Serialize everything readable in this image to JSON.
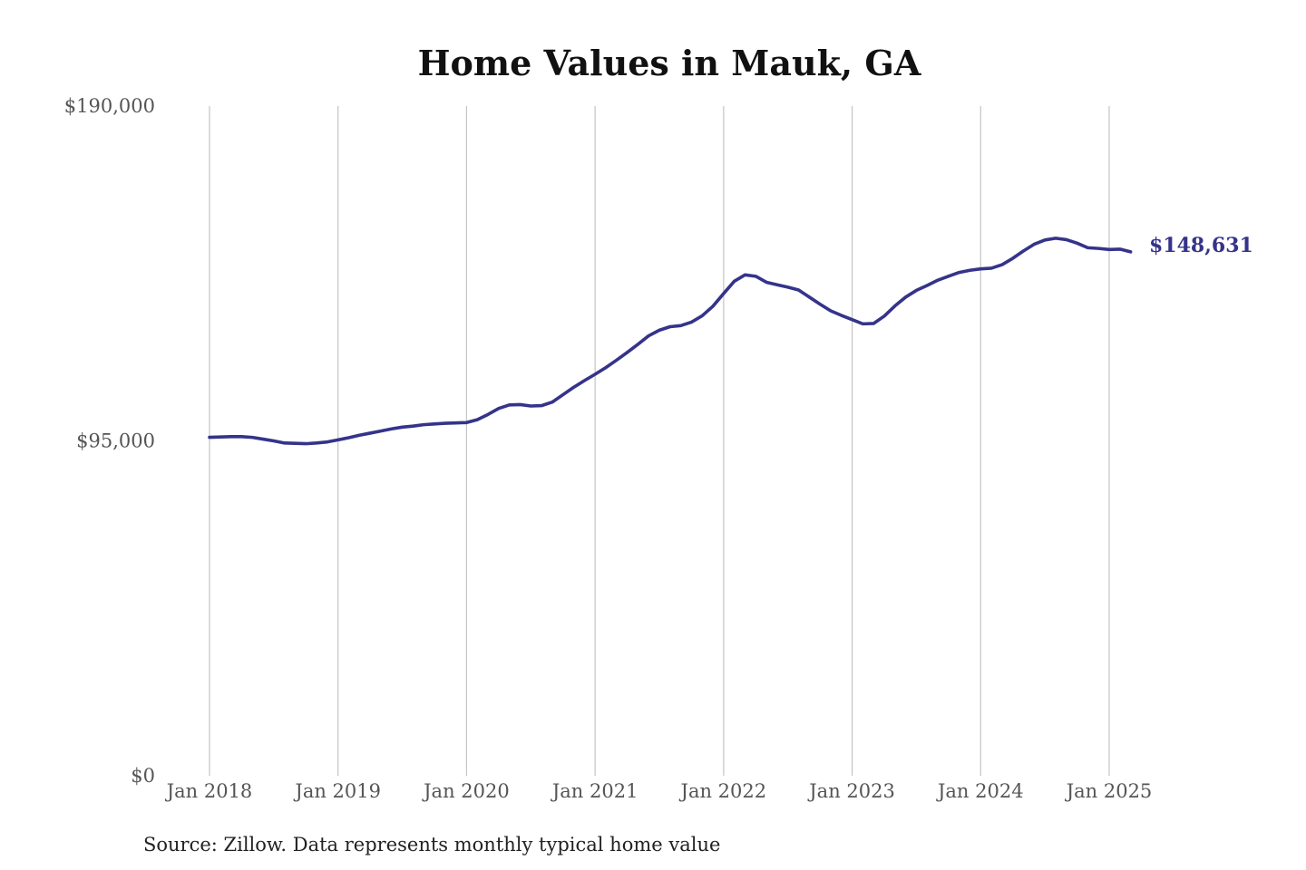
{
  "colors": {
    "series": "#35338a",
    "grid": "#c4c4c4",
    "text": "#111111",
    "tick": "#555555"
  },
  "chart_data": {
    "type": "line",
    "title": "Home Values in Mauk, GA",
    "xlabel": "",
    "ylabel": "",
    "ylim": [
      0,
      190000
    ],
    "xlim": [
      "2018-01",
      "2025-03"
    ],
    "grid": {
      "vertical": true,
      "horizontal": false
    },
    "yticks": [
      {
        "value": 0,
        "label": "$0"
      },
      {
        "value": 95000,
        "label": "$95,000"
      },
      {
        "value": 190000,
        "label": "$190,000"
      }
    ],
    "xticks": [
      {
        "value": "2018-01",
        "label": "Jan 2018"
      },
      {
        "value": "2019-01",
        "label": "Jan 2019"
      },
      {
        "value": "2020-01",
        "label": "Jan 2020"
      },
      {
        "value": "2021-01",
        "label": "Jan 2021"
      },
      {
        "value": "2022-01",
        "label": "Jan 2022"
      },
      {
        "value": "2023-01",
        "label": "Jan 2023"
      },
      {
        "value": "2024-01",
        "label": "Jan 2024"
      },
      {
        "value": "2025-01",
        "label": "Jan 2025"
      }
    ],
    "end_label": "$148,631",
    "series": [
      {
        "points": [
          [
            "2018-01",
            96000
          ],
          [
            "2018-02",
            96100
          ],
          [
            "2018-03",
            96200
          ],
          [
            "2018-04",
            96200
          ],
          [
            "2018-05",
            96000
          ],
          [
            "2018-06",
            95500
          ],
          [
            "2018-07",
            95000
          ],
          [
            "2018-08",
            94400
          ],
          [
            "2018-09",
            94300
          ],
          [
            "2018-10",
            94200
          ],
          [
            "2018-11",
            94400
          ],
          [
            "2018-12",
            94700
          ],
          [
            "2019-01",
            95300
          ],
          [
            "2019-02",
            95900
          ],
          [
            "2019-03",
            96600
          ],
          [
            "2019-04",
            97200
          ],
          [
            "2019-05",
            97800
          ],
          [
            "2019-06",
            98400
          ],
          [
            "2019-07",
            98900
          ],
          [
            "2019-08",
            99200
          ],
          [
            "2019-09",
            99600
          ],
          [
            "2019-10",
            99800
          ],
          [
            "2019-11",
            100000
          ],
          [
            "2019-12",
            100100
          ],
          [
            "2020-01",
            100200
          ],
          [
            "2020-02",
            101000
          ],
          [
            "2020-03",
            102500
          ],
          [
            "2020-04",
            104200
          ],
          [
            "2020-05",
            105200
          ],
          [
            "2020-06",
            105300
          ],
          [
            "2020-07",
            104900
          ],
          [
            "2020-08",
            105000
          ],
          [
            "2020-09",
            106000
          ],
          [
            "2020-10",
            108100
          ],
          [
            "2020-11",
            110200
          ],
          [
            "2020-12",
            112100
          ],
          [
            "2021-01",
            113900
          ],
          [
            "2021-02",
            115800
          ],
          [
            "2021-03",
            117900
          ],
          [
            "2021-04",
            120100
          ],
          [
            "2021-05",
            122400
          ],
          [
            "2021-06",
            124800
          ],
          [
            "2021-07",
            126400
          ],
          [
            "2021-08",
            127400
          ],
          [
            "2021-09",
            127700
          ],
          [
            "2021-10",
            128700
          ],
          [
            "2021-11",
            130500
          ],
          [
            "2021-12",
            133200
          ],
          [
            "2022-01",
            136800
          ],
          [
            "2022-02",
            140300
          ],
          [
            "2022-03",
            142100
          ],
          [
            "2022-04",
            141700
          ],
          [
            "2022-05",
            140000
          ],
          [
            "2022-06",
            139300
          ],
          [
            "2022-07",
            138600
          ],
          [
            "2022-08",
            137800
          ],
          [
            "2022-09",
            135800
          ],
          [
            "2022-10",
            133800
          ],
          [
            "2022-11",
            131900
          ],
          [
            "2022-12",
            130600
          ],
          [
            "2023-01",
            129400
          ],
          [
            "2023-02",
            128200
          ],
          [
            "2023-03",
            128300
          ],
          [
            "2023-04",
            130400
          ],
          [
            "2023-05",
            133300
          ],
          [
            "2023-06",
            135800
          ],
          [
            "2023-07",
            137700
          ],
          [
            "2023-08",
            139100
          ],
          [
            "2023-09",
            140600
          ],
          [
            "2023-10",
            141700
          ],
          [
            "2023-11",
            142800
          ],
          [
            "2023-12",
            143400
          ],
          [
            "2024-01",
            143800
          ],
          [
            "2024-02",
            144000
          ],
          [
            "2024-03",
            145000
          ],
          [
            "2024-04",
            146800
          ],
          [
            "2024-05",
            148900
          ],
          [
            "2024-06",
            150800
          ],
          [
            "2024-07",
            152000
          ],
          [
            "2024-08",
            152500
          ],
          [
            "2024-09",
            152100
          ],
          [
            "2024-10",
            151100
          ],
          [
            "2024-11",
            149800
          ],
          [
            "2024-12",
            149600
          ],
          [
            "2025-01",
            149300
          ],
          [
            "2025-02",
            149400
          ],
          [
            "2025-03",
            148631
          ]
        ]
      }
    ]
  },
  "footer": {
    "source": "Source: Zillow. Data represents monthly typical home value"
  }
}
